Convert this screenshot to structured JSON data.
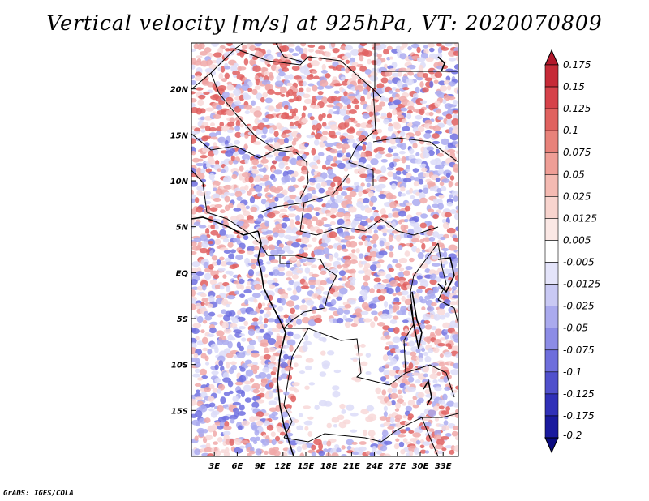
{
  "title": "Vertical velocity [m/s] at 925hPa, VT: 2020070809",
  "credit": "GrADS: IGES/COLA",
  "map": {
    "lon_range": [
      0,
      35
    ],
    "lat_range": [
      -20,
      25
    ],
    "x_ticks": [
      "3E",
      "6E",
      "9E",
      "12E",
      "15E",
      "18E",
      "21E",
      "24E",
      "27E",
      "30E",
      "33E"
    ],
    "x_tick_values": [
      3,
      6,
      9,
      12,
      15,
      18,
      21,
      24,
      27,
      30,
      33
    ],
    "y_ticks": [
      "20N",
      "15N",
      "10N",
      "5N",
      "EQ",
      "5S",
      "10S",
      "15S"
    ],
    "y_tick_values": [
      20,
      15,
      10,
      5,
      0,
      -5,
      -10,
      -15
    ]
  },
  "colorbar": {
    "labels": [
      "0.175",
      "0.15",
      "0.125",
      "0.1",
      "0.075",
      "0.05",
      "0.025",
      "0.0125",
      "0.005",
      "-0.005",
      "-0.0125",
      "-0.025",
      "-0.05",
      "-0.075",
      "-0.1",
      "-0.125",
      "-0.175",
      "-0.2"
    ],
    "colors": [
      "#b2182b",
      "#c62a37",
      "#d6424a",
      "#e0625f",
      "#e8827a",
      "#ef9e96",
      "#f4bab2",
      "#f8d4ce",
      "#fbe8e5",
      "#ffffff",
      "#e4e4fa",
      "#c9c9f4",
      "#aaaaee",
      "#8c8ce6",
      "#6e6edc",
      "#5050cc",
      "#3030b8",
      "#1a1a9e",
      "#0a0a80"
    ]
  },
  "field_colors": {
    "pos_strong": "#e06060",
    "pos_mid": "#f0a8a8",
    "pos_light": "#f8d8d8",
    "neg_strong": "#7070e0",
    "neg_mid": "#aaaaf0",
    "neg_light": "#dcdcf8"
  }
}
